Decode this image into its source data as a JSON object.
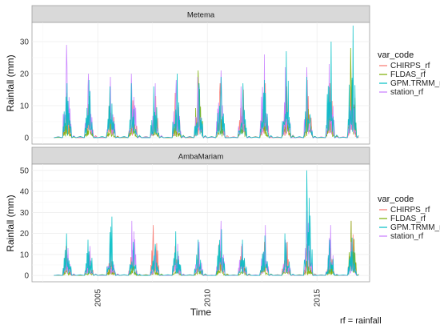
{
  "chart_data": {
    "type": "line",
    "xlabel": "Time",
    "ylabel": "Rainfall (mm)",
    "x_ticks": [
      "2005",
      "2010",
      "2015"
    ],
    "x_range": [
      2002.0,
      2017.4
    ],
    "note": "rf = rainfall",
    "legend": {
      "title": "var_code",
      "placement": "right",
      "entries": [
        "CHIRPS_rf",
        "FLDAS_rf",
        "GPM.TRMM_rf",
        "station_rf"
      ]
    },
    "colors": {
      "CHIRPS_rf": "#f8766d",
      "FLDAS_rf": "#7cae00",
      "GPM.TRMM_rf": "#00bfc4",
      "station_rf": "#c77cff"
    },
    "panels": [
      {
        "name": "Metema",
        "ylim": [
          -2,
          36
        ],
        "y_ticks": [
          0,
          10,
          20,
          30
        ],
        "season_peaks": [
          {
            "year": 2003,
            "CHIRPS_rf": 14,
            "FLDAS_rf": 6,
            "GPM.TRMM_rf": 17,
            "station_rf": 29
          },
          {
            "year": 2004,
            "CHIRPS_rf": 13,
            "FLDAS_rf": 5,
            "GPM.TRMM_rf": 18,
            "station_rf": 20
          },
          {
            "year": 2005,
            "CHIRPS_rf": 15,
            "FLDAS_rf": 5,
            "GPM.TRMM_rf": 16,
            "station_rf": 19
          },
          {
            "year": 2006,
            "CHIRPS_rf": 14,
            "FLDAS_rf": 6,
            "GPM.TRMM_rf": 17,
            "station_rf": 20
          },
          {
            "year": 2007,
            "CHIRPS_rf": 13,
            "FLDAS_rf": 7,
            "GPM.TRMM_rf": 16,
            "station_rf": 17
          },
          {
            "year": 2008,
            "CHIRPS_rf": 14,
            "FLDAS_rf": 7,
            "GPM.TRMM_rf": 20,
            "station_rf": 18
          },
          {
            "year": 2009,
            "CHIRPS_rf": 16,
            "FLDAS_rf": 21,
            "GPM.TRMM_rf": 17,
            "station_rf": 19
          },
          {
            "year": 2010,
            "CHIRPS_rf": 17,
            "FLDAS_rf": 8,
            "GPM.TRMM_rf": 19,
            "station_rf": 21
          },
          {
            "year": 2011,
            "CHIRPS_rf": 15,
            "FLDAS_rf": 8,
            "GPM.TRMM_rf": 17,
            "station_rf": 16
          },
          {
            "year": 2012,
            "CHIRPS_rf": 17,
            "FLDAS_rf": 9,
            "GPM.TRMM_rf": 18,
            "station_rf": 26
          },
          {
            "year": 2013,
            "CHIRPS_rf": 16,
            "FLDAS_rf": 8,
            "GPM.TRMM_rf": 27,
            "station_rf": 22
          },
          {
            "year": 2014,
            "CHIRPS_rf": 18,
            "FLDAS_rf": 9,
            "GPM.TRMM_rf": 19,
            "station_rf": 22
          },
          {
            "year": 2015,
            "CHIRPS_rf": 17,
            "FLDAS_rf": 8,
            "GPM.TRMM_rf": 30,
            "station_rf": 23
          },
          {
            "year": 2016,
            "CHIRPS_rf": 16,
            "FLDAS_rf": 28,
            "GPM.TRMM_rf": 35,
            "station_rf": 18
          }
        ]
      },
      {
        "name": "AmbaMariam",
        "ylim": [
          -3,
          53
        ],
        "y_ticks": [
          0,
          10,
          20,
          30,
          40,
          50
        ],
        "season_peaks": [
          {
            "year": 2003,
            "CHIRPS_rf": 14,
            "FLDAS_rf": 6,
            "GPM.TRMM_rf": 20,
            "station_rf": 13
          },
          {
            "year": 2004,
            "CHIRPS_rf": 12,
            "FLDAS_rf": 5,
            "GPM.TRMM_rf": 17,
            "station_rf": 14
          },
          {
            "year": 2005,
            "CHIRPS_rf": 11,
            "FLDAS_rf": 6,
            "GPM.TRMM_rf": 28,
            "station_rf": 15
          },
          {
            "year": 2006,
            "CHIRPS_rf": 13,
            "FLDAS_rf": 5,
            "GPM.TRMM_rf": 16,
            "station_rf": 26
          },
          {
            "year": 2007,
            "CHIRPS_rf": 24,
            "FLDAS_rf": 6,
            "GPM.TRMM_rf": 15,
            "station_rf": 12
          },
          {
            "year": 2008,
            "CHIRPS_rf": 14,
            "FLDAS_rf": 6,
            "GPM.TRMM_rf": 21,
            "station_rf": 15
          },
          {
            "year": 2009,
            "CHIRPS_rf": 13,
            "FLDAS_rf": 8,
            "GPM.TRMM_rf": 17,
            "station_rf": 16
          },
          {
            "year": 2010,
            "CHIRPS_rf": 15,
            "FLDAS_rf": 6,
            "GPM.TRMM_rf": 22,
            "station_rf": 26
          },
          {
            "year": 2011,
            "CHIRPS_rf": 14,
            "FLDAS_rf": 6,
            "GPM.TRMM_rf": 17,
            "station_rf": 15
          },
          {
            "year": 2012,
            "CHIRPS_rf": 16,
            "FLDAS_rf": 7,
            "GPM.TRMM_rf": 19,
            "station_rf": 24
          },
          {
            "year": 2013,
            "CHIRPS_rf": 16,
            "FLDAS_rf": 7,
            "GPM.TRMM_rf": 20,
            "station_rf": 17
          },
          {
            "year": 2014,
            "CHIRPS_rf": 15,
            "FLDAS_rf": 7,
            "GPM.TRMM_rf": 50,
            "station_rf": 31
          },
          {
            "year": 2015,
            "CHIRPS_rf": 13,
            "FLDAS_rf": 8,
            "GPM.TRMM_rf": 17,
            "station_rf": 24
          },
          {
            "year": 2016,
            "CHIRPS_rf": 26,
            "FLDAS_rf": 26,
            "GPM.TRMM_rf": 18,
            "station_rf": 16
          }
        ]
      }
    ]
  }
}
